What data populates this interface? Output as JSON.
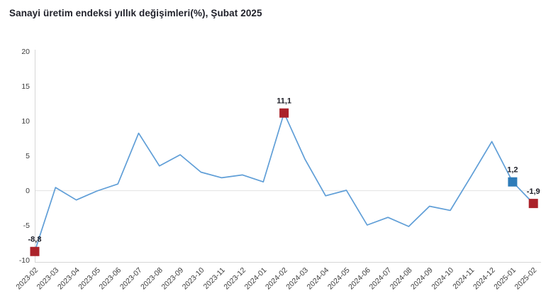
{
  "title": "Sanayi üretim endeksi yıllık değişimleri(%), Şubat 2025",
  "colors": {
    "line": "#5f9ed7",
    "marker_red": "#ab222a",
    "marker_blue": "#2e7cb9",
    "axis_line": "#d6d6d6",
    "zero_gridline": "#e7e7e7",
    "tick_text": "#3c3c3c",
    "title_text": "#21222b",
    "data_label_text": "#1c1d26",
    "background": "#ffffff"
  },
  "chart_data": {
    "type": "line",
    "title": "Sanayi üretim endeksi yıllık değişimleri(%), Şubat 2025",
    "xlabel": "",
    "ylabel": "",
    "ylim": [
      -10,
      20
    ],
    "yticks": [
      20,
      15,
      10,
      5,
      0,
      -5,
      -10
    ],
    "grid": "zero-line-only",
    "legend": "none",
    "x": [
      "2023-02",
      "2023-03",
      "2023-04",
      "2023-05",
      "2023-06",
      "2023-07",
      "2023-08",
      "2023-09",
      "2023-10",
      "2023-11",
      "2023-12",
      "2024-01",
      "2024-02",
      "2024-03",
      "2024-04",
      "2024-05",
      "2024-06",
      "2024-07",
      "2024-08",
      "2024-09",
      "2024-10",
      "2024-11",
      "2024-12",
      "2025-01",
      "2025-02"
    ],
    "values": [
      -8.8,
      0.4,
      -1.4,
      -0.1,
      0.9,
      8.2,
      3.5,
      5.1,
      2.6,
      1.8,
      2.2,
      1.2,
      11.1,
      4.5,
      -0.8,
      0.0,
      -5.0,
      -3.9,
      -5.2,
      -2.3,
      -2.9,
      2.0,
      7.0,
      1.2,
      -1.9
    ],
    "annotated_points": [
      {
        "x": "2023-02",
        "value": -8.8,
        "label": "-8,8",
        "marker": "square",
        "marker_color": "#ab222a"
      },
      {
        "x": "2024-02",
        "value": 11.1,
        "label": "11,1",
        "marker": "square",
        "marker_color": "#ab222a"
      },
      {
        "x": "2025-01",
        "value": 1.2,
        "label": "1,2",
        "marker": "square",
        "marker_color": "#2e7cb9"
      },
      {
        "x": "2025-02",
        "value": -1.9,
        "label": "-1,9",
        "marker": "square",
        "marker_color": "#ab222a"
      }
    ]
  }
}
